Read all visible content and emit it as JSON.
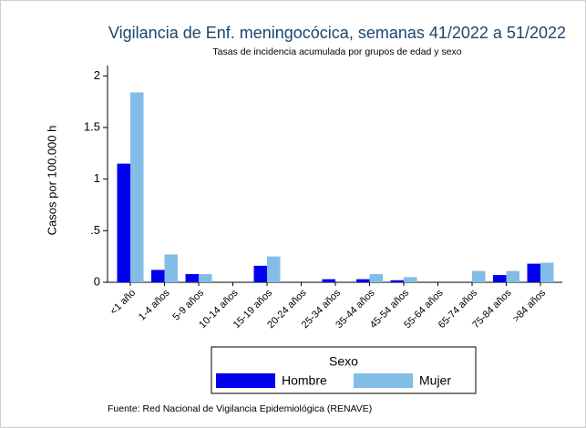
{
  "chart_data": {
    "type": "bar",
    "title": "Vigilancia de Enf. meningocócica, semanas 41/2022 a 51/2022",
    "subtitle": "Tasas de incidencia acumulada por grupos de edad y sexo",
    "y_label": "Casos por 100.000 h",
    "categories": [
      "<1 año",
      "1-4 años",
      "5-9 años",
      "10-14 años",
      "15-19 años",
      "20-24 años",
      "25-34 años",
      "35-44 años",
      "45-54 años",
      "55-64 años",
      "65-74 años",
      "75-84 años",
      ">84 años"
    ],
    "series": [
      {
        "name": "Hombre",
        "color": "#0000ee",
        "values": [
          1.15,
          0.12,
          0.08,
          0,
          0.16,
          0,
          0.03,
          0.03,
          0.02,
          0,
          0,
          0.07,
          0.18
        ]
      },
      {
        "name": "Mujer",
        "color": "#82bde8",
        "values": [
          1.84,
          0.27,
          0.08,
          0,
          0.25,
          0,
          0,
          0.08,
          0.05,
          0,
          0.11,
          0.11,
          0.19
        ]
      }
    ],
    "ylim": [
      0,
      2.1
    ],
    "yticks": [
      0,
      {
        "value": 0.5,
        "label": ".5"
      },
      1,
      1.5,
      2
    ],
    "legend_title": "Sexo",
    "legend_position": "bottom",
    "source": "Fuente: Red Nacional de Vigilancia Epidemiológica (RENAVE)"
  }
}
